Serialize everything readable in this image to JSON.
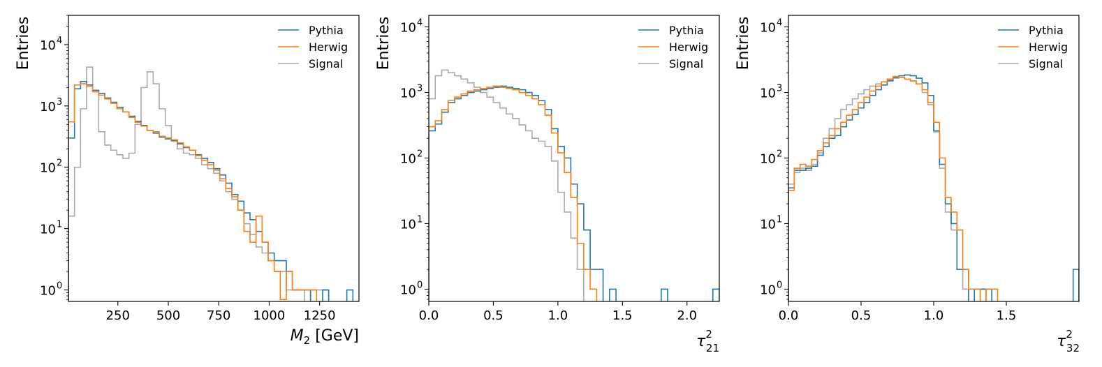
{
  "colors": {
    "pythia": "#1f77b4",
    "herwig": "#ff7f0e",
    "signal": "#aaaaaa"
  },
  "chart_data": [
    {
      "type": "histogram",
      "title": "",
      "xlabel": "M_2 [GeV]",
      "xlabel_parts": {
        "main": "M",
        "sub": "2",
        "unit": " [GeV]"
      },
      "ylabel": "Entries",
      "yscale": "log",
      "xlim": [
        5,
        1445
      ],
      "ylim": [
        0.65,
        30000
      ],
      "grid": false,
      "legend_position": "top-right",
      "xticks": [
        250,
        500,
        750,
        1000,
        1250
      ],
      "xtick_labels": [
        "250",
        "500",
        "750",
        "1000",
        "1250"
      ],
      "yticks": [
        1,
        10,
        100,
        1000,
        10000
      ],
      "ytick_labels": [
        "10",
        "10",
        "10",
        "10",
        "10"
      ],
      "ytick_exponents": [
        "0",
        "1",
        "2",
        "3",
        "4"
      ],
      "bin_edges": [
        5,
        35,
        65,
        95,
        125,
        155,
        185,
        215,
        245,
        275,
        305,
        335,
        365,
        395,
        425,
        455,
        485,
        515,
        545,
        575,
        605,
        635,
        665,
        695,
        725,
        755,
        785,
        815,
        845,
        875,
        905,
        935,
        965,
        995,
        1025,
        1055,
        1085,
        1115,
        1145,
        1175,
        1205,
        1235,
        1265,
        1295,
        1325,
        1355,
        1385,
        1415,
        1445
      ],
      "series": [
        {
          "name": "Pythia",
          "color_key": "pythia",
          "values": [
            300,
            1900,
            2500,
            2200,
            1800,
            1600,
            1350,
            1150,
            950,
            800,
            680,
            560,
            480,
            400,
            360,
            310,
            290,
            270,
            240,
            210,
            190,
            160,
            140,
            120,
            95,
            75,
            55,
            36,
            28,
            18,
            14,
            9,
            6,
            4,
            3,
            3,
            2,
            1,
            1,
            1,
            0.5,
            0.5,
            1,
            0,
            0,
            0,
            1,
            0
          ]
        },
        {
          "name": "Herwig",
          "color_key": "herwig",
          "values": [
            550,
            2200,
            2300,
            2100,
            1700,
            1500,
            1300,
            1100,
            900,
            800,
            650,
            540,
            470,
            400,
            380,
            320,
            300,
            280,
            250,
            215,
            190,
            155,
            130,
            110,
            90,
            65,
            45,
            33,
            20,
            9,
            6,
            16,
            6,
            3,
            2,
            0.7,
            2,
            1,
            1,
            1,
            1,
            0,
            0,
            0,
            0,
            0,
            0,
            0
          ]
        },
        {
          "name": "Signal",
          "color_key": "signal",
          "values": [
            16,
            100,
            900,
            4300,
            1800,
            380,
            230,
            190,
            160,
            140,
            170,
            500,
            2000,
            3600,
            2300,
            900,
            480,
            280,
            200,
            170,
            160,
            140,
            110,
            95,
            80,
            60,
            40,
            30,
            20,
            12,
            8,
            5,
            4,
            3,
            2,
            2,
            1,
            1,
            1,
            0.5,
            1,
            1,
            1,
            0,
            0,
            0,
            0,
            0
          ]
        }
      ]
    },
    {
      "type": "histogram",
      "title": "",
      "xlabel": "τ_21^2",
      "xlabel_parts": {
        "main": "τ",
        "sub": "21",
        "sup": "2"
      },
      "ylabel": "Entries",
      "yscale": "log",
      "xlim": [
        0.0,
        2.25
      ],
      "ylim": [
        0.65,
        15000
      ],
      "grid": false,
      "legend_position": "top-right",
      "xticks": [
        0.0,
        0.5,
        1.0,
        1.5,
        2.0
      ],
      "xtick_labels": [
        "0.0",
        "0.5",
        "1.0",
        "1.5",
        "2.0"
      ],
      "yticks": [
        1,
        10,
        100,
        1000,
        10000
      ],
      "ytick_labels": [
        "10",
        "10",
        "10",
        "10",
        "10"
      ],
      "ytick_exponents": [
        "0",
        "1",
        "2",
        "3",
        "4"
      ],
      "bin_edges": [
        0,
        0.05,
        0.1,
        0.15,
        0.2,
        0.25,
        0.3,
        0.35,
        0.4,
        0.45,
        0.5,
        0.55,
        0.6,
        0.65,
        0.7,
        0.75,
        0.8,
        0.85,
        0.9,
        0.95,
        1.0,
        1.05,
        1.1,
        1.15,
        1.2,
        1.25,
        1.3,
        1.35,
        1.4,
        1.45,
        1.5,
        1.55,
        1.6,
        1.65,
        1.7,
        1.75,
        1.8,
        1.85,
        1.9,
        1.95,
        2.0,
        2.05,
        2.1,
        2.15,
        2.2,
        2.25
      ],
      "series": [
        {
          "name": "Pythia",
          "color_key": "pythia",
          "values": [
            260,
            330,
            500,
            700,
            800,
            900,
            1000,
            1050,
            1100,
            1150,
            1200,
            1250,
            1200,
            1150,
            1100,
            1000,
            900,
            750,
            550,
            280,
            150,
            100,
            40,
            20,
            8,
            2,
            2,
            0,
            1,
            0,
            0,
            0,
            0,
            0,
            0,
            0,
            1,
            0,
            0,
            0,
            0,
            0,
            0,
            0,
            1
          ]
        },
        {
          "name": "Herwig",
          "color_key": "herwig",
          "values": [
            300,
            370,
            550,
            750,
            850,
            950,
            1050,
            1100,
            1150,
            1200,
            1250,
            1200,
            1150,
            1100,
            1000,
            900,
            800,
            650,
            450,
            240,
            120,
            60,
            25,
            5,
            2,
            1,
            0,
            0,
            0,
            0,
            0,
            0,
            0,
            0,
            0,
            0,
            0,
            0,
            0,
            0,
            0,
            0,
            0,
            0,
            0
          ]
        },
        {
          "name": "Signal",
          "color_key": "signal",
          "values": [
            800,
            1800,
            2200,
            2000,
            1800,
            1600,
            1400,
            1200,
            1000,
            850,
            700,
            580,
            470,
            400,
            320,
            260,
            200,
            180,
            150,
            90,
            30,
            15,
            6,
            2,
            0.5,
            0,
            0,
            0,
            0,
            0,
            0,
            0,
            0,
            0,
            0,
            0,
            0,
            0,
            0,
            0,
            0,
            0,
            0,
            0,
            0
          ]
        }
      ]
    },
    {
      "type": "histogram",
      "title": "",
      "xlabel": "τ_32^2",
      "xlabel_parts": {
        "main": "τ",
        "sub": "32",
        "sup": "2"
      },
      "ylabel": "Entries",
      "yscale": "log",
      "xlim": [
        0.0,
        2.0
      ],
      "ylim": [
        0.65,
        15000
      ],
      "grid": false,
      "legend_position": "top-right",
      "xticks": [
        0.0,
        0.5,
        1.0,
        1.5
      ],
      "xtick_labels": [
        "0.0",
        "0.5",
        "1.0",
        "1.5"
      ],
      "yticks": [
        1,
        10,
        100,
        1000,
        10000
      ],
      "ytick_labels": [
        "10",
        "10",
        "10",
        "10",
        "10"
      ],
      "ytick_exponents": [
        "0",
        "1",
        "2",
        "3",
        "4"
      ],
      "bin_edges": [
        0,
        0.04,
        0.08,
        0.12,
        0.16,
        0.2,
        0.24,
        0.28,
        0.32,
        0.36,
        0.4,
        0.44,
        0.48,
        0.52,
        0.56,
        0.6,
        0.64,
        0.68,
        0.72,
        0.76,
        0.8,
        0.84,
        0.88,
        0.92,
        0.96,
        1.0,
        1.04,
        1.08,
        1.12,
        1.16,
        1.2,
        1.24,
        1.28,
        1.32,
        1.36,
        1.4,
        1.44,
        1.48,
        1.52,
        1.56,
        1.6,
        1.64,
        1.68,
        1.72,
        1.76,
        1.8,
        1.84,
        1.88,
        1.92,
        1.96,
        2.0
      ],
      "series": [
        {
          "name": "Pythia",
          "color_key": "pythia",
          "values": [
            35,
            65,
            65,
            70,
            75,
            110,
            150,
            200,
            220,
            300,
            380,
            460,
            580,
            700,
            900,
            1100,
            1300,
            1500,
            1700,
            1800,
            1850,
            1800,
            1650,
            1400,
            900,
            260,
            80,
            20,
            10,
            2,
            2,
            0.5,
            1,
            1,
            1,
            0,
            0,
            0,
            0,
            0,
            0,
            0,
            0,
            0,
            0,
            0,
            0,
            0,
            0,
            2
          ]
        },
        {
          "name": "Herwig",
          "color_key": "herwig",
          "values": [
            32,
            70,
            80,
            75,
            95,
            130,
            170,
            220,
            280,
            350,
            450,
            550,
            700,
            850,
            1050,
            1250,
            1450,
            1600,
            1750,
            1700,
            1600,
            1500,
            1350,
            1100,
            700,
            350,
            100,
            25,
            15,
            8,
            2,
            1,
            1,
            0.5,
            1,
            1,
            0,
            0,
            0,
            0,
            0,
            0,
            0,
            0,
            0,
            0,
            0,
            0,
            0,
            0
          ]
        },
        {
          "name": "Signal",
          "color_key": "signal",
          "values": [
            40,
            60,
            70,
            65,
            80,
            120,
            200,
            280,
            400,
            550,
            650,
            800,
            950,
            1100,
            1250,
            1350,
            1450,
            1550,
            1650,
            1700,
            1600,
            1500,
            1350,
            1000,
            650,
            250,
            70,
            15,
            8,
            2,
            1,
            0,
            0,
            1,
            0,
            0,
            0,
            0,
            0,
            0,
            0,
            0,
            0,
            0,
            0,
            0,
            0,
            0,
            0,
            0
          ]
        }
      ]
    }
  ]
}
